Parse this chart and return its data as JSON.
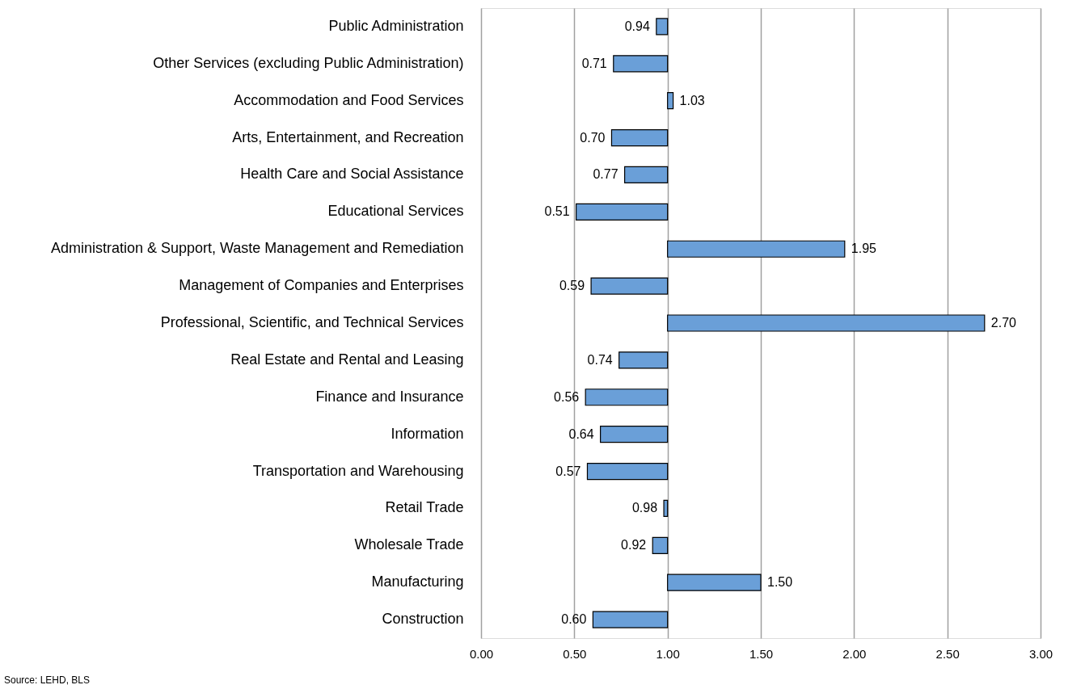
{
  "chart_data": {
    "type": "bar",
    "orientation": "horizontal",
    "categories": [
      "Public Administration",
      "Other Services (excluding Public Administration)",
      "Accommodation and Food Services",
      "Arts, Entertainment, and Recreation",
      "Health Care and Social Assistance",
      "Educational Services",
      "Administration & Support, Waste Management and Remediation",
      "Management of Companies and Enterprises",
      "Professional, Scientific, and Technical Services",
      "Real Estate and Rental and Leasing",
      "Finance and Insurance",
      "Information",
      "Transportation and Warehousing",
      "Retail Trade",
      "Wholesale Trade",
      "Manufacturing",
      "Construction"
    ],
    "base": [
      1,
      1,
      1,
      1,
      1,
      1,
      1,
      1,
      1,
      1,
      1,
      1,
      1,
      1,
      1,
      1,
      1
    ],
    "values": [
      -0.06,
      -0.29,
      0.03,
      -0.3,
      -0.23,
      -0.49,
      0.95,
      -0.41,
      1.7,
      -0.26,
      -0.44,
      -0.36,
      -0.43,
      -0.02,
      -0.08,
      0.5,
      -0.4
    ],
    "value_labels": [
      "0.94",
      "0.71",
      "1.03",
      "0.70",
      "0.77",
      "0.51",
      "1.95",
      "0.59",
      "2.70",
      "0.74",
      "0.56",
      "0.64",
      "0.57",
      "0.98",
      "0.92",
      "1.50",
      "0.60"
    ],
    "color": "#6a9fd8",
    "xlim": [
      0,
      3
    ],
    "xticks": [
      {
        "value": 0,
        "label": "0.00"
      },
      {
        "value": 0.5,
        "label": "0.50"
      },
      {
        "value": 1,
        "label": "1.00"
      },
      {
        "value": 1.5,
        "label": "1.50"
      },
      {
        "value": 2,
        "label": "2.00"
      },
      {
        "value": 2.5,
        "label": "2.50"
      },
      {
        "value": 3,
        "label": "3.00"
      }
    ],
    "grid": "x",
    "annotations": [
      "Source:  LEHD, BLS"
    ]
  }
}
